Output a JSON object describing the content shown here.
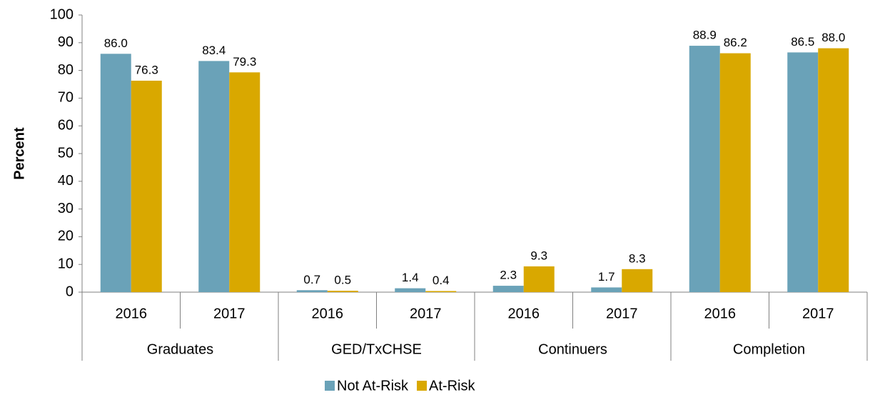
{
  "chart_data": {
    "type": "bar",
    "y_label": "Percent",
    "categories": [
      "2016",
      "2017",
      "2016",
      "2017",
      "2016",
      "2017",
      "2016",
      "2017"
    ],
    "groups": [
      "Graduates",
      "GED/TxCHSE",
      "Continuers",
      "Completion"
    ],
    "series": [
      {
        "name": "Not At-Risk",
        "color": "#6aa2b8",
        "values": [
          86.0,
          83.4,
          0.7,
          1.4,
          2.3,
          1.7,
          88.9,
          86.5
        ],
        "value_labels": [
          "86.0",
          "83.4",
          "0.7",
          "1.4",
          "2.3",
          "1.7",
          "88.9",
          "86.5"
        ]
      },
      {
        "name": "At-Risk",
        "color": "#d9a800",
        "values": [
          76.3,
          79.3,
          0.5,
          0.4,
          9.3,
          8.3,
          86.2,
          88.0
        ],
        "value_labels": [
          "76.3",
          "79.3",
          "0.5",
          "0.4",
          "9.3",
          "8.3",
          "86.2",
          "88.0"
        ]
      }
    ],
    "ylim": [
      0,
      100
    ],
    "yticks": [
      0,
      10,
      20,
      30,
      40,
      50,
      60,
      70,
      80,
      90,
      100
    ],
    "grid": false,
    "legend": "bottom"
  }
}
